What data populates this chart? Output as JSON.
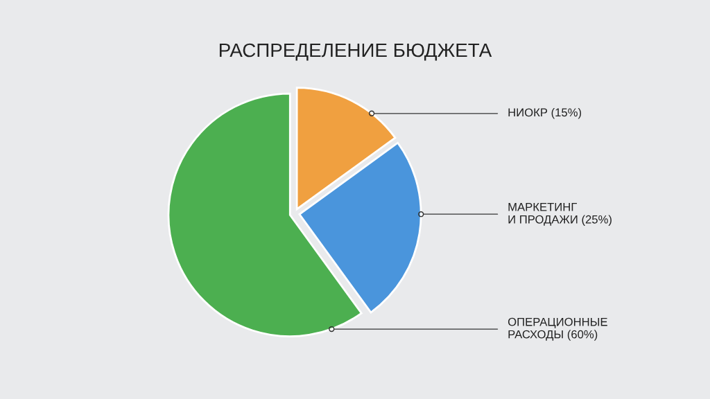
{
  "chart_data": {
    "type": "pie",
    "title": "РАСПРЕДЕЛЕНИЕ БЮДЖЕТА",
    "categories": [
      "НИОКР",
      "МАРКЕТИНГ И ПРОДАЖИ",
      "ОПЕРАЦИОННЫЕ РАСХОДЫ"
    ],
    "values": [
      15,
      25,
      60
    ],
    "colors": [
      "#f0a040",
      "#4a95dc",
      "#4caf50"
    ],
    "value_labels": [
      "(15%)",
      "(25%)",
      "(60%)"
    ]
  }
}
